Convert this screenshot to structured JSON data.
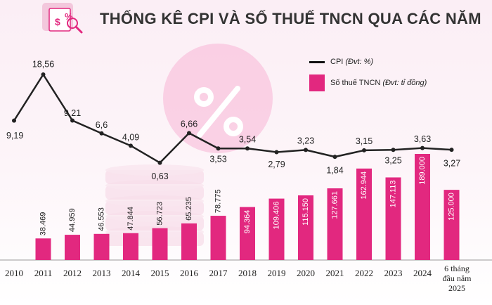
{
  "title": "THỐNG KÊ CPI VÀ SỐ THUẾ TNCN QUA CÁC NĂM",
  "legend": {
    "cpi_name": "CPI",
    "cpi_unit": "(Đvt: %)",
    "tax_name": "Số thuế TNCN",
    "tax_unit": "(Đvt: tỉ đồng)"
  },
  "colors": {
    "bar": "#e2287f",
    "line": "#222222",
    "title": "#333333"
  },
  "icons": {
    "header": "tax-document-icon",
    "watermark": "percent-icon"
  },
  "chart_data": {
    "type": "bar+line",
    "categories": [
      "2010",
      "2011",
      "2012",
      "2013",
      "2014",
      "2015",
      "2016",
      "2017",
      "2018",
      "2019",
      "2020",
      "2021",
      "2022",
      "2023",
      "2024",
      "6 tháng đầu năm 2025"
    ],
    "series": [
      {
        "name": "CPI",
        "type": "line",
        "values": [
          9.19,
          18.56,
          9.21,
          6.6,
          4.09,
          0.63,
          6.66,
          3.53,
          3.54,
          2.79,
          3.23,
          1.84,
          3.15,
          3.25,
          3.63,
          3.27
        ],
        "labels": [
          "9,19",
          "18,56",
          "9,21",
          "6,6",
          "4,09",
          "0,63",
          "6,66",
          "3,53",
          "3,54",
          "2,79",
          "3,23",
          "1,84",
          "3,15",
          "3,25",
          "3,63",
          "3,27"
        ]
      },
      {
        "name": "Số thuế TNCN",
        "type": "bar",
        "values": [
          null,
          38469,
          44959,
          46553,
          47844,
          56723,
          65235,
          78775,
          94364,
          109406,
          115150,
          127661,
          162944,
          147113,
          189000,
          125000
        ],
        "labels": [
          "",
          "38.469",
          "44.959",
          "46.553",
          "47.844",
          "56.723",
          "65.235",
          "78.775",
          "94.364",
          "109.406",
          "115.150",
          "127.661",
          "162.944",
          "147.113",
          "189.000",
          "125.000"
        ]
      }
    ],
    "legend_position": "top-right",
    "grid": false
  }
}
